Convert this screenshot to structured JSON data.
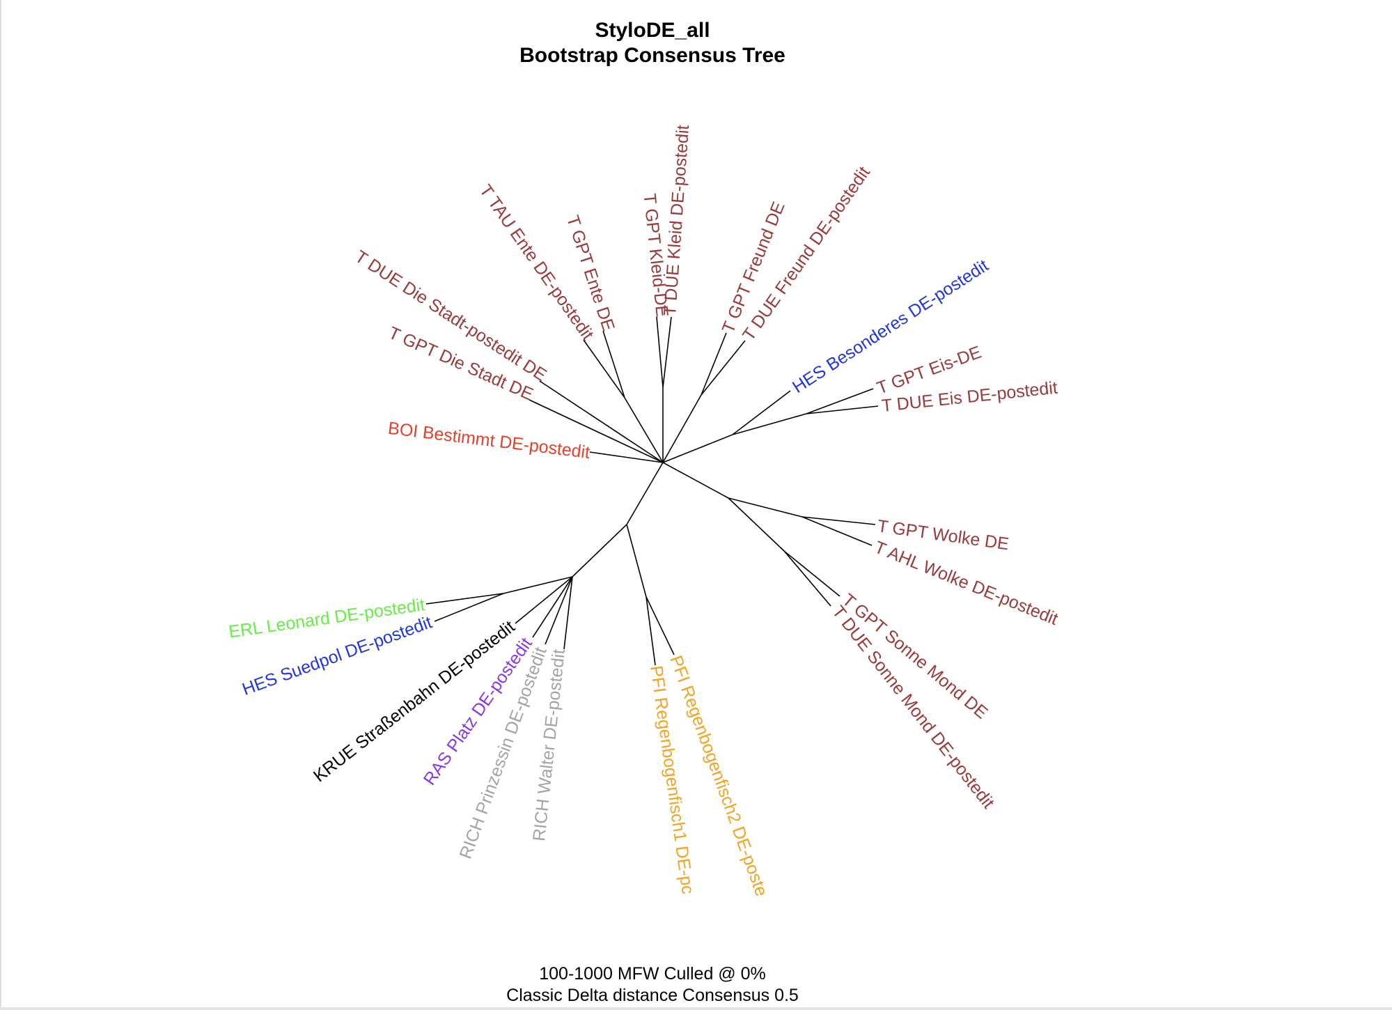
{
  "title": {
    "line1": "StyloDE_all",
    "line2": "Bootstrap Consensus Tree"
  },
  "caption": {
    "line1": "100-1000 MFW  Culled @ 0%",
    "line2": "Classic Delta distance Consensus 0.5"
  },
  "colors": {
    "brown": "#9b3a3a",
    "red": "#e8402a",
    "blue": "#2236e0",
    "green": "#66ee44",
    "black": "#000000",
    "purple": "#8a38e6",
    "gray": "#a4a4a4",
    "orange": "#f4a323"
  },
  "leaves": [
    {
      "id": "leaf-t-due-die-stadt",
      "label": "T DUE Die Stadt-postedit DE",
      "color": "brown"
    },
    {
      "id": "leaf-t-gpt-die-stadt",
      "label": "T GPT Die Stadt DE",
      "color": "brown"
    },
    {
      "id": "leaf-t-tau-ente",
      "label": "T TAU Ente DE-postedit",
      "color": "brown"
    },
    {
      "id": "leaf-t-gpt-ente",
      "label": "T GPT Ente DE",
      "color": "brown"
    },
    {
      "id": "leaf-t-gpt-kleid",
      "label": "T GPT Kleid-DE",
      "color": "brown"
    },
    {
      "id": "leaf-t-due-kleid",
      "label": "T DUE Kleid DE-postedit",
      "color": "brown"
    },
    {
      "id": "leaf-t-gpt-freund",
      "label": "T GPT Freund DE",
      "color": "brown"
    },
    {
      "id": "leaf-t-due-freund",
      "label": "T DUE Freund DE-postedit",
      "color": "brown"
    },
    {
      "id": "leaf-hes-besonderes",
      "label": "HES Besonderes DE-postedit",
      "color": "blue"
    },
    {
      "id": "leaf-t-gpt-eis",
      "label": "T GPT Eis-DE",
      "color": "brown"
    },
    {
      "id": "leaf-t-due-eis",
      "label": "T DUE Eis DE-postedit",
      "color": "brown"
    },
    {
      "id": "leaf-boi-bestimmt",
      "label": "BOI Bestimmt DE-postedit",
      "color": "red"
    },
    {
      "id": "leaf-t-gpt-wolke",
      "label": "T GPT Wolke DE",
      "color": "brown"
    },
    {
      "id": "leaf-t-ahl-wolke",
      "label": "T AHL Wolke DE-postedit",
      "color": "brown"
    },
    {
      "id": "leaf-t-gpt-sonne-mond",
      "label": "T GPT Sonne Mond DE",
      "color": "brown"
    },
    {
      "id": "leaf-t-due-sonne-mond",
      "label": "T DUE Sonne Mond DE-postedit",
      "color": "brown"
    },
    {
      "id": "leaf-erl-leonard",
      "label": "ERL Leonard DE-postedit",
      "color": "green"
    },
    {
      "id": "leaf-hes-suedpol",
      "label": "HES Suedpol DE-postedit",
      "color": "blue"
    },
    {
      "id": "leaf-krue-strassenbahn",
      "label": "KRUE Straßenbahn DE-postedit",
      "color": "black"
    },
    {
      "id": "leaf-ras-platz",
      "label": "RAS Platz DE-postedit",
      "color": "purple"
    },
    {
      "id": "leaf-rich-prinzessin",
      "label": "RICH Prinzessin DE-postedit",
      "color": "gray"
    },
    {
      "id": "leaf-rich-walter",
      "label": "RICH Walter DE-postedit",
      "color": "gray"
    },
    {
      "id": "leaf-pfi-regenbogenfisch1",
      "label": "PFI Regenbogenfisch1 DE-pc",
      "color": "orange"
    },
    {
      "id": "leaf-pfi-regenbogenfisch2",
      "label": "PFI Regenbogenfisch2 DE-poste",
      "color": "orange"
    }
  ]
}
